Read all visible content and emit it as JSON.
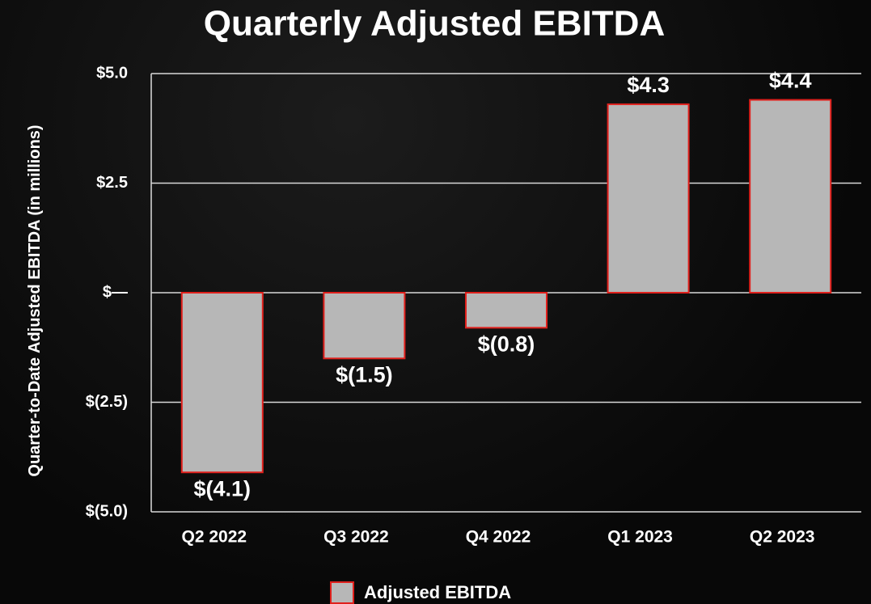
{
  "chart_data": {
    "type": "bar",
    "title": "Quarterly Adjusted EBITDA",
    "y_label": "Quarter-to-Date Adjusted EBITDA (in millions)",
    "categories": [
      "Q2 2022",
      "Q3 2022",
      "Q4 2022",
      "Q1 2023",
      "Q2 2023"
    ],
    "series": [
      {
        "name": "Adjusted EBITDA",
        "color": "#b7b7b7",
        "edge_color": "#e0201c",
        "values": [
          -4.1,
          -1.5,
          -0.8,
          4.3,
          4.4
        ],
        "value_labels": [
          "$(4.1)",
          "$(1.5)",
          "$(0.8)",
          "$4.3",
          "$4.4"
        ]
      }
    ],
    "ylim": [
      -5,
      5
    ],
    "yticks": [
      {
        "value": 5,
        "label": "$5.0"
      },
      {
        "value": 2.5,
        "label": "$2.5"
      },
      {
        "value": 0,
        "label": "$—"
      },
      {
        "value": -2.5,
        "label": "$(2.5)"
      },
      {
        "value": -5,
        "label": "$(5.0)"
      }
    ],
    "grid": true,
    "legend": "bottom"
  }
}
